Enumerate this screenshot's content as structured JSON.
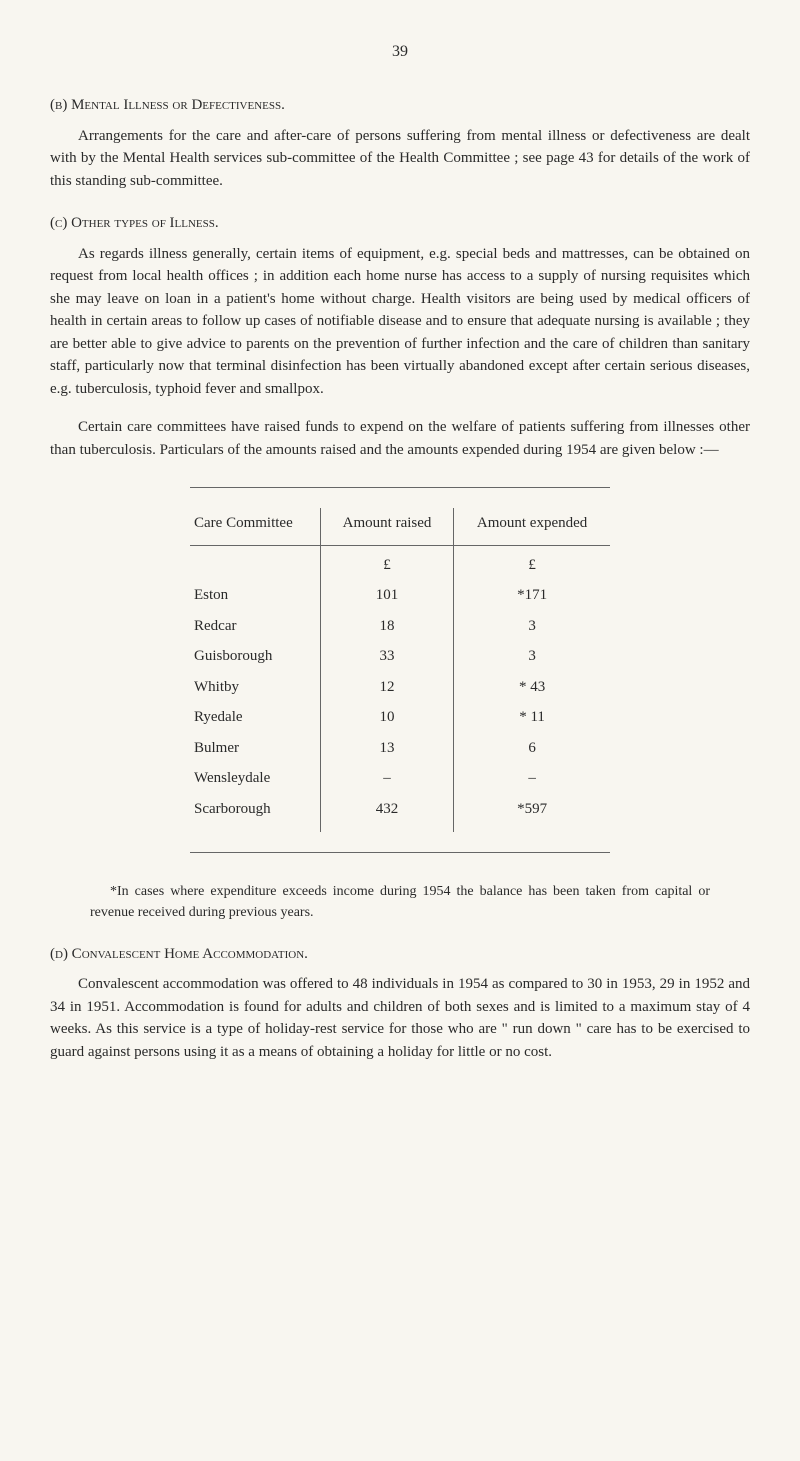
{
  "page_number": "39",
  "section_b": {
    "heading": "(b) Mental Illness or Defectiveness.",
    "paragraph": "Arrangements for the care and after-care of persons suffering from mental illness or defectiveness are dealt with by the Mental Health services sub-committee of the Health Committee ; see page 43 for details of the work of this standing sub-committee."
  },
  "section_c": {
    "heading": "(c) Other types of Illness.",
    "paragraph1": "As regards illness generally, certain items of equipment, e.g. special beds and mattresses, can be obtained on request from local health offices ; in addition each home nurse has access to a supply of nursing requisites which she may leave on loan in a patient's home without charge. Health visitors are being used by medical officers of health in certain areas to follow up cases of notifiable disease and to ensure that adequate nursing is available ; they are better able to give advice to parents on the prevention of further infection and the care of children than sanitary staff, particularly now that terminal disinfection has been virtually abandoned except after certain serious diseases, e.g. tuberculosis, typhoid fever and smallpox.",
    "paragraph2": "Certain care committees have raised funds to expend on the welfare of patients suffering from illnesses other than tuberculosis. Particulars of the amounts raised and the amounts expended during 1954 are given below :—"
  },
  "table": {
    "headers": [
      "Care Committee",
      "Amount raised",
      "Amount expended"
    ],
    "currency": "£",
    "rows": [
      {
        "name": "Eston",
        "raised": "101",
        "expended": "*171"
      },
      {
        "name": "Redcar",
        "raised": "18",
        "expended": "3"
      },
      {
        "name": "Guisborough",
        "raised": "33",
        "expended": "3"
      },
      {
        "name": "Whitby",
        "raised": "12",
        "expended": "* 43"
      },
      {
        "name": "Ryedale",
        "raised": "10",
        "expended": "* 11"
      },
      {
        "name": "Bulmer",
        "raised": "13",
        "expended": "6"
      },
      {
        "name": "Wensleydale",
        "raised": "–",
        "expended": "–"
      },
      {
        "name": "Scarborough",
        "raised": "432",
        "expended": "*597"
      }
    ]
  },
  "footnote": "*In cases where expenditure exceeds income during 1954 the balance has been taken from capital or revenue received during previous years.",
  "section_d": {
    "heading": "(d) Convalescent Home Accommodation.",
    "paragraph": "Convalescent accommodation was offered to 48 individuals in 1954 as compared to 30 in 1953, 29 in 1952 and 34 in 1951. Accommodation is found for adults and children of both sexes and is limited to a maximum stay of 4 weeks. As this service is a type of holiday-rest service for those who are \" run down \" care has to be exercised to guard against persons using it as a means of obtaining a holiday for little or no cost."
  }
}
